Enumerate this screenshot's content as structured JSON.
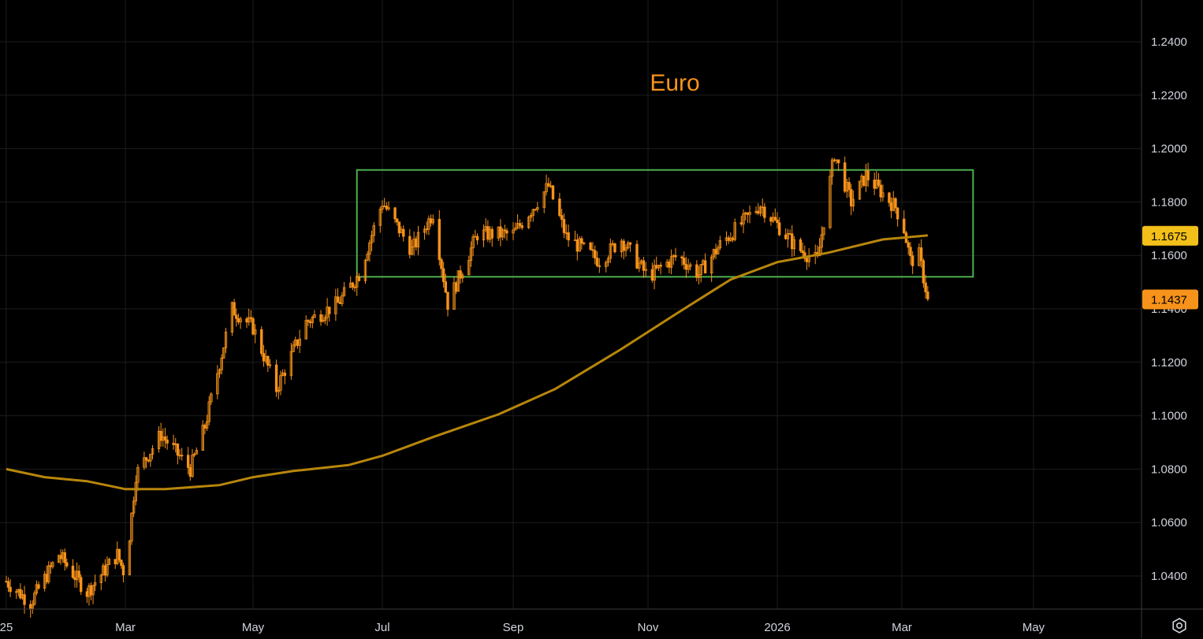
{
  "chart_data": {
    "type": "candlestick",
    "title": "Euro",
    "ylim": [
      1.029,
      1.256
    ],
    "y_ticks": [
      "1.2400",
      "1.2200",
      "1.2000",
      "1.1800",
      "1.1600",
      "1.1400",
      "1.1200",
      "1.1000",
      "1.0800",
      "1.0600",
      "1.0400"
    ],
    "x_ticks": [
      "25",
      "Mar",
      "May",
      "Jul",
      "Sep",
      "Nov",
      "2026",
      "Mar",
      "May"
    ],
    "x_tick_dates": [
      "2025-01-01",
      "2025-03-01",
      "2025-05-01",
      "2025-07-01",
      "2025-09-01",
      "2025-11-01",
      "2026-01-01",
      "2026-03-01",
      "2026-05-01"
    ],
    "grid": true,
    "price_anchors": [
      [
        "2025-01-01",
        1.038
      ],
      [
        "2025-01-13",
        1.03
      ],
      [
        "2025-01-27",
        1.048
      ],
      [
        "2025-02-10",
        1.034
      ],
      [
        "2025-02-25",
        1.048
      ],
      [
        "2025-03-01",
        1.04
      ],
      [
        "2025-03-06",
        1.078
      ],
      [
        "2025-03-18",
        1.093
      ],
      [
        "2025-04-01",
        1.08
      ],
      [
        "2025-04-08",
        1.096
      ],
      [
        "2025-04-21",
        1.14
      ],
      [
        "2025-05-01",
        1.133
      ],
      [
        "2025-05-12",
        1.11
      ],
      [
        "2025-05-26",
        1.135
      ],
      [
        "2025-06-10",
        1.142
      ],
      [
        "2025-06-20",
        1.153
      ],
      [
        "2025-07-01",
        1.18
      ],
      [
        "2025-07-15",
        1.162
      ],
      [
        "2025-07-25",
        1.176
      ],
      [
        "2025-08-01",
        1.142
      ],
      [
        "2025-08-15",
        1.168
      ],
      [
        "2025-09-01",
        1.168
      ],
      [
        "2025-09-17",
        1.186
      ],
      [
        "2025-09-25",
        1.167
      ],
      [
        "2025-10-10",
        1.158
      ],
      [
        "2025-10-20",
        1.166
      ],
      [
        "2025-11-01",
        1.152
      ],
      [
        "2025-11-15",
        1.16
      ],
      [
        "2025-11-25",
        1.153
      ],
      [
        "2025-12-05",
        1.164
      ],
      [
        "2025-12-24",
        1.179
      ],
      [
        "2026-01-10",
        1.163
      ],
      [
        "2026-01-20",
        1.158
      ],
      [
        "2026-01-28",
        1.198
      ],
      [
        "2026-02-05",
        1.18
      ],
      [
        "2026-02-12",
        1.19
      ],
      [
        "2026-02-26",
        1.178
      ],
      [
        "2026-03-02",
        1.17
      ],
      [
        "2026-03-05",
        1.158
      ],
      [
        "2026-03-09",
        1.16
      ],
      [
        "2026-03-13",
        1.1437
      ]
    ],
    "ma_line": {
      "color": "#b8860b",
      "points": [
        [
          "2025-01-01",
          1.08
        ],
        [
          "2025-01-20",
          1.077
        ],
        [
          "2025-02-10",
          1.0755
        ],
        [
          "2025-03-01",
          1.0725
        ],
        [
          "2025-03-20",
          1.0725
        ],
        [
          "2025-04-15",
          1.074
        ],
        [
          "2025-05-01",
          1.077
        ],
        [
          "2025-05-20",
          1.0793
        ],
        [
          "2025-06-15",
          1.0815
        ],
        [
          "2025-07-01",
          1.085
        ],
        [
          "2025-07-25",
          1.092
        ],
        [
          "2025-08-25",
          1.1005
        ],
        [
          "2025-09-20",
          1.11
        ],
        [
          "2025-10-20",
          1.125
        ],
        [
          "2025-11-15",
          1.1385
        ],
        [
          "2025-12-10",
          1.151
        ],
        [
          "2026-01-01",
          1.1575
        ],
        [
          "2026-01-25",
          1.161
        ],
        [
          "2026-02-20",
          1.166
        ],
        [
          "2026-03-13",
          1.1675
        ]
      ],
      "last_value": "1.1675",
      "tag_color": "#f2c019"
    },
    "last_price": "1.1437",
    "last_price_tag_color": "#f7931a",
    "candle_color": "#f7931a",
    "range_box": {
      "color": "#4caf50",
      "x_start": "2025-06-19",
      "x_end": "2026-04-03",
      "y_top": 1.192,
      "y_bottom": 1.152
    }
  },
  "settings_icon": "gear-icon"
}
